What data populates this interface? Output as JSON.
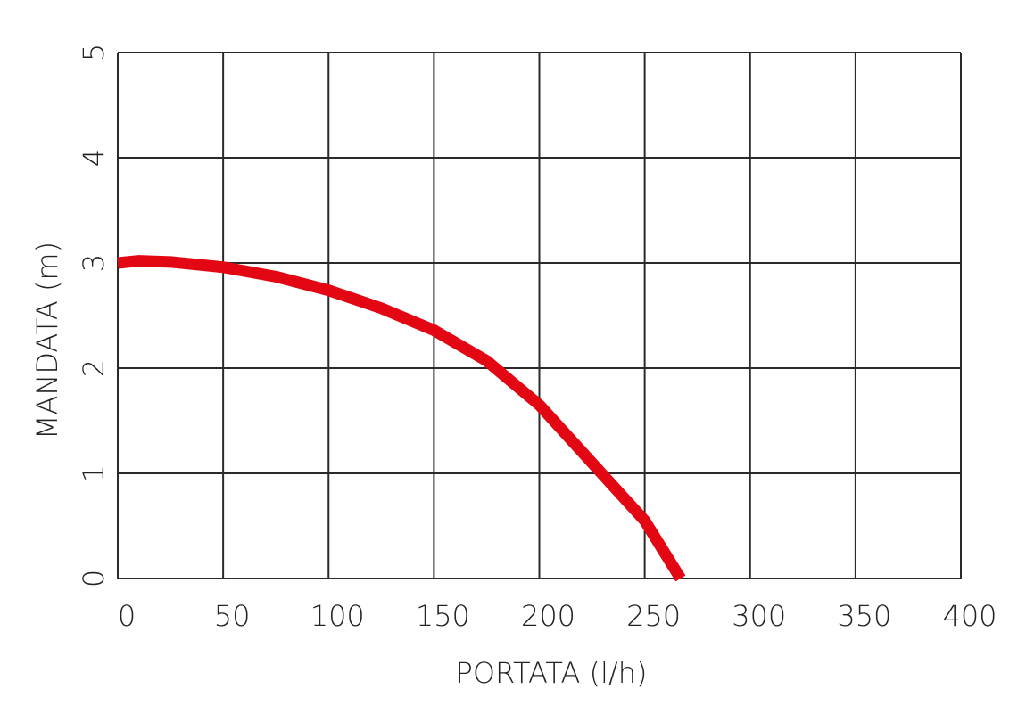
{
  "chart_data": {
    "type": "line",
    "x_label": "PORTATA (l/h)",
    "y_label": "MANDATA (m)",
    "series": [
      {
        "color": "#e30613",
        "x": [
          0,
          10,
          25,
          50,
          75,
          100,
          125,
          150,
          175,
          200,
          225,
          250,
          267
        ],
        "values": [
          3,
          3.02,
          3.01,
          2.96,
          2.87,
          2.74,
          2.57,
          2.36,
          2.07,
          1.65,
          1.1,
          0.55,
          0
        ]
      }
    ],
    "xlim": [
      0,
      400
    ],
    "xticks": [
      0,
      50,
      100,
      150,
      200,
      250,
      300,
      350,
      400
    ],
    "ylim": [
      0,
      5
    ],
    "yticks": [
      0,
      1,
      2,
      3,
      4,
      5
    ],
    "grid": true
  }
}
